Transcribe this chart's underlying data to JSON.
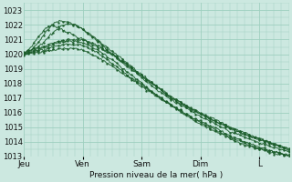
{
  "title": "Pression niveau de la mer( hPa )",
  "bg_color": "#cce8e0",
  "grid_color": "#9ecfbf",
  "line_color": "#1a5c2a",
  "ylim": [
    1013,
    1023.5
  ],
  "yticks": [
    1013,
    1014,
    1015,
    1016,
    1017,
    1018,
    1019,
    1020,
    1021,
    1022,
    1023
  ],
  "day_labels": [
    "Jeu",
    "Ven",
    "Sam",
    "Dim",
    "L"
  ],
  "day_positions": [
    0,
    24,
    48,
    72,
    96
  ],
  "xlim": [
    0,
    108
  ],
  "num_hours": 108,
  "series": [
    {
      "xs": [
        0,
        3,
        6,
        9,
        12,
        18,
        24,
        30,
        36,
        42,
        48,
        54,
        60,
        66,
        72,
        78,
        84,
        90,
        96,
        102,
        108
      ],
      "ys": [
        1020.0,
        1020.5,
        1021.2,
        1021.8,
        1022.0,
        1021.5,
        1021.0,
        1020.5,
        1020.0,
        1019.3,
        1018.5,
        1017.8,
        1017.0,
        1016.5,
        1016.0,
        1015.5,
        1015.0,
        1014.5,
        1014.2,
        1013.8,
        1013.4
      ]
    },
    {
      "xs": [
        0,
        3,
        6,
        9,
        12,
        15,
        18,
        21,
        24,
        30,
        36,
        42,
        48,
        54,
        60,
        66,
        72,
        78,
        84,
        90,
        96,
        102,
        108
      ],
      "ys": [
        1020.0,
        1020.3,
        1020.8,
        1021.5,
        1022.1,
        1022.3,
        1022.2,
        1022.0,
        1021.7,
        1021.0,
        1020.2,
        1019.4,
        1018.6,
        1017.8,
        1017.0,
        1016.4,
        1015.9,
        1015.4,
        1015.0,
        1014.6,
        1014.2,
        1013.9,
        1013.5
      ]
    },
    {
      "xs": [
        0,
        3,
        6,
        9,
        12,
        15,
        18,
        21,
        24,
        30,
        36,
        42,
        48,
        54,
        60,
        66,
        72,
        78,
        84,
        90,
        96,
        102,
        108
      ],
      "ys": [
        1020.0,
        1020.2,
        1020.5,
        1021.0,
        1021.5,
        1021.9,
        1022.1,
        1022.0,
        1021.7,
        1020.9,
        1020.0,
        1019.2,
        1018.4,
        1017.6,
        1016.9,
        1016.3,
        1015.7,
        1015.2,
        1014.7,
        1014.3,
        1013.9,
        1013.6,
        1013.3
      ]
    },
    {
      "xs": [
        0,
        6,
        12,
        18,
        24,
        30,
        36,
        42,
        48,
        54,
        60,
        66,
        72,
        78,
        84,
        90,
        96,
        102,
        108
      ],
      "ys": [
        1020.1,
        1020.4,
        1020.8,
        1021.0,
        1021.0,
        1020.6,
        1020.0,
        1019.3,
        1018.5,
        1017.8,
        1017.1,
        1016.5,
        1015.9,
        1015.4,
        1014.9,
        1014.5,
        1014.1,
        1013.8,
        1013.5
      ]
    },
    {
      "xs": [
        0,
        6,
        12,
        18,
        24,
        30,
        36,
        42,
        48,
        54,
        60,
        66,
        72,
        78,
        84,
        90,
        96,
        102,
        108
      ],
      "ys": [
        1020.0,
        1020.3,
        1020.7,
        1020.9,
        1020.8,
        1020.3,
        1019.6,
        1018.8,
        1018.0,
        1017.2,
        1016.5,
        1015.8,
        1015.2,
        1014.7,
        1014.2,
        1013.8,
        1013.5,
        1013.3,
        1013.1
      ]
    },
    {
      "xs": [
        0,
        6,
        12,
        18,
        24,
        30,
        36,
        42,
        48,
        54,
        60,
        66,
        72,
        78,
        84,
        90,
        96,
        102,
        108
      ],
      "ys": [
        1020.0,
        1020.2,
        1020.5,
        1020.7,
        1020.6,
        1020.1,
        1019.4,
        1018.6,
        1017.9,
        1017.2,
        1016.5,
        1015.9,
        1015.3,
        1014.8,
        1014.3,
        1013.9,
        1013.5,
        1013.2,
        1013.0
      ]
    },
    {
      "xs": [
        0,
        6,
        12,
        18,
        24,
        30,
        36,
        42,
        48,
        54,
        60,
        66,
        72,
        78,
        84,
        90,
        96,
        102,
        108
      ],
      "ys": [
        1020.0,
        1020.1,
        1020.3,
        1020.4,
        1020.3,
        1019.8,
        1019.2,
        1018.5,
        1017.8,
        1017.1,
        1016.5,
        1015.9,
        1015.4,
        1014.9,
        1014.4,
        1014.0,
        1013.6,
        1013.3,
        1013.1
      ]
    }
  ]
}
